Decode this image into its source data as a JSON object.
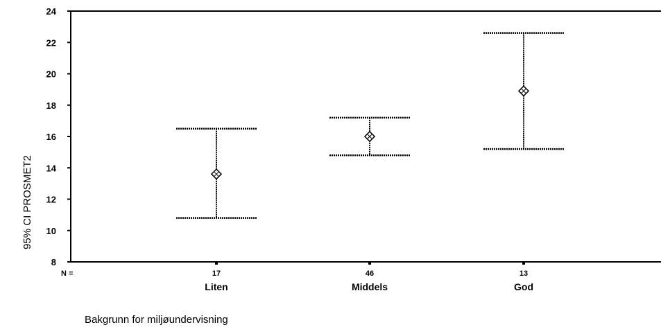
{
  "chart_data": {
    "type": "error-bar",
    "ylabel": "95% CI PROSMET2",
    "xlabel": "Bakgrunn for miljøundervisning",
    "ylim": [
      8,
      24
    ],
    "yticks": [
      8,
      10,
      12,
      14,
      16,
      18,
      20,
      22,
      24
    ],
    "n_label": "N =",
    "categories": [
      "Liten",
      "Middels",
      "God"
    ],
    "n": [
      "17",
      "46",
      "13"
    ],
    "mean": [
      13.6,
      16.0,
      18.9
    ],
    "lower": [
      10.8,
      14.8,
      15.2
    ],
    "upper": [
      16.5,
      17.2,
      22.6
    ],
    "grid": false,
    "legend": "none"
  }
}
